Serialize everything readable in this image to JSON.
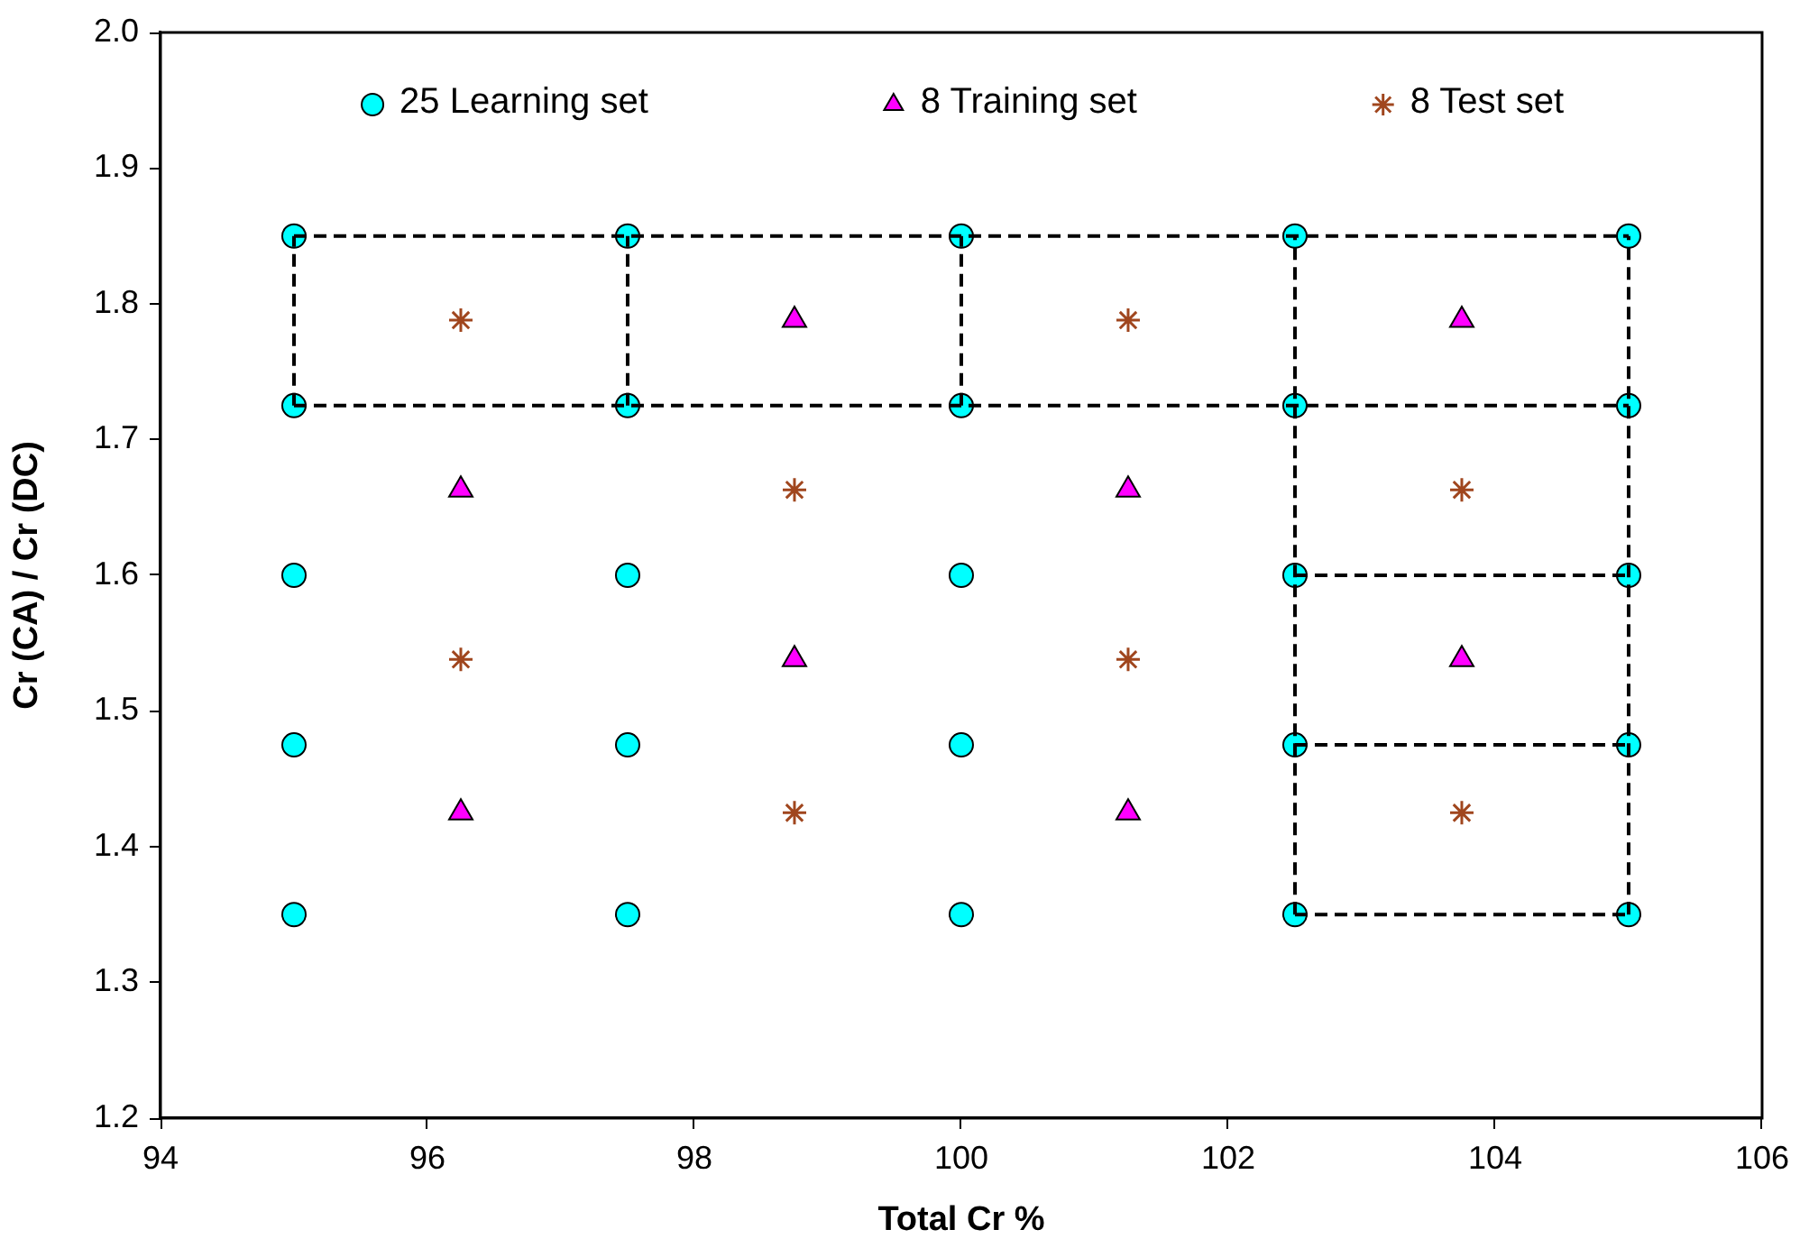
{
  "chart_data": {
    "type": "scatter",
    "xlabel": "Total Cr %",
    "ylabel": "Cr (CA) / Cr (DC)",
    "xlim": [
      94,
      106
    ],
    "xticks": [
      94,
      96,
      98,
      100,
      102,
      104,
      106
    ],
    "ylim": [
      1.2,
      2
    ],
    "yticks": [
      1.2,
      1.3,
      1.4,
      1.5,
      1.6,
      1.7,
      1.8,
      1.9,
      {
        "value": 2,
        "label": "2.0"
      }
    ],
    "grid": false,
    "legend": "top",
    "series": [
      {
        "name": "25 Learning set",
        "color": "#00ffff",
        "marker": "circle",
        "x": [
          95,
          95,
          95,
          95,
          95,
          97.5,
          97.5,
          97.5,
          97.5,
          97.5,
          100,
          100,
          100,
          100,
          100,
          102.5,
          102.5,
          102.5,
          102.5,
          102.5,
          105,
          105,
          105,
          105,
          105
        ],
        "values": [
          1.35,
          1.475,
          1.6,
          1.725,
          1.85,
          1.35,
          1.475,
          1.6,
          1.725,
          1.85,
          1.35,
          1.475,
          1.6,
          1.725,
          1.85,
          1.35,
          1.475,
          1.6,
          1.725,
          1.85,
          1.35,
          1.475,
          1.6,
          1.725,
          1.85
        ]
      },
      {
        "name": "8 Training set",
        "color": "#ff00ff",
        "marker": "triangle",
        "x": [
          96.25,
          96.25,
          98.75,
          98.75,
          101.25,
          101.25,
          103.75,
          103.75
        ],
        "values": [
          1.663,
          1.425,
          1.788,
          1.538,
          1.663,
          1.425,
          1.788,
          1.538
        ]
      },
      {
        "name": "8 Test set",
        "color": "#a0461e",
        "marker": "cross",
        "x": [
          96.25,
          96.25,
          98.75,
          98.75,
          101.25,
          101.25,
          103.75,
          103.75
        ],
        "values": [
          1.788,
          1.538,
          1.663,
          1.425,
          1.788,
          1.538,
          1.663,
          1.425
        ]
      },
      {
        "type": "line",
        "color": "#000000",
        "marker": "none",
        "line_style": "dashed",
        "x": [
          95,
          105
        ],
        "values": [
          1.85,
          1.85
        ]
      },
      {
        "type": "line",
        "color": "#000000",
        "marker": "none",
        "line_style": "dashed",
        "x": [
          95,
          105
        ],
        "values": [
          1.725,
          1.725
        ]
      },
      {
        "type": "line",
        "color": "#000000",
        "marker": "none",
        "line_style": "dashed",
        "x": [
          102.5,
          105
        ],
        "values": [
          1.6,
          1.6
        ]
      },
      {
        "type": "line",
        "color": "#000000",
        "marker": "none",
        "line_style": "dashed",
        "x": [
          102.5,
          105
        ],
        "values": [
          1.475,
          1.475
        ]
      },
      {
        "type": "line",
        "color": "#000000",
        "marker": "none",
        "line_style": "dashed",
        "x": [
          102.5,
          105
        ],
        "values": [
          1.35,
          1.35
        ]
      },
      {
        "type": "line",
        "color": "#000000",
        "marker": "none",
        "line_style": "dashed",
        "x": [
          95,
          95
        ],
        "values": [
          1.725,
          1.85
        ]
      },
      {
        "type": "line",
        "color": "#000000",
        "marker": "none",
        "line_style": "dashed",
        "x": [
          97.5,
          97.5
        ],
        "values": [
          1.725,
          1.85
        ]
      },
      {
        "type": "line",
        "color": "#000000",
        "marker": "none",
        "line_style": "dashed",
        "x": [
          100,
          100
        ],
        "values": [
          1.725,
          1.85
        ]
      },
      {
        "type": "line",
        "color": "#000000",
        "marker": "none",
        "line_style": "dashed",
        "x": [
          102.5,
          102.5
        ],
        "values": [
          1.35,
          1.85
        ]
      },
      {
        "type": "line",
        "color": "#000000",
        "marker": "none",
        "line_style": "dashed",
        "x": [
          105,
          105
        ],
        "values": [
          1.35,
          1.85
        ]
      }
    ]
  }
}
